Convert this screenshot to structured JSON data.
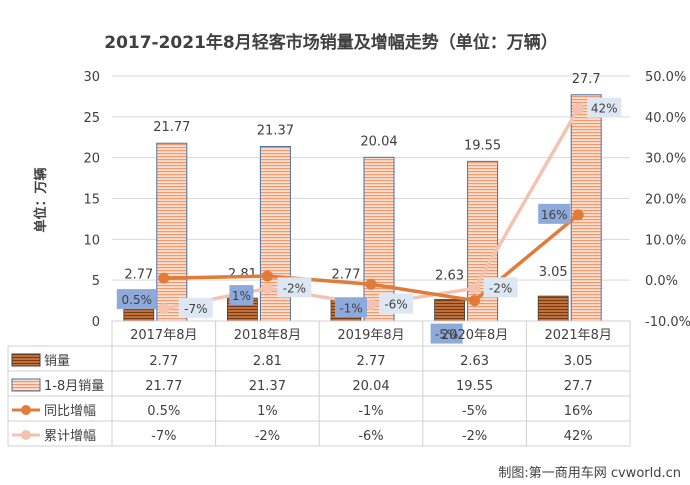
{
  "chart_data": {
    "type": "bar+line",
    "title": "2017-2021年8月轻客市场销量及增幅走势（单位：万辆）",
    "ylabel": "单位：万辆",
    "categories": [
      "2017年8月",
      "2018年8月",
      "2019年8月",
      "2020年8月",
      "2021年8月"
    ],
    "y_left": {
      "min": 0,
      "max": 30,
      "ticks": [
        "0",
        "5",
        "10",
        "15",
        "20",
        "25",
        "30"
      ]
    },
    "y_right": {
      "min": -10,
      "max": 50,
      "ticks": [
        "-10.0%",
        "0.0%",
        "10.0%",
        "20.0%",
        "30.0%",
        "40.0%",
        "50.0%"
      ]
    },
    "series": [
      {
        "name": "销量",
        "kind": "bar",
        "axis": "left",
        "color": "#c0703a",
        "values": [
          2.77,
          2.81,
          2.77,
          2.63,
          3.05
        ],
        "labels": [
          "2.77",
          "2.81",
          "2.77",
          "2.63",
          "3.05"
        ]
      },
      {
        "name": "1-8月销量",
        "kind": "bar",
        "axis": "left",
        "color": "#f4b08a",
        "values": [
          21.77,
          21.37,
          20.04,
          19.55,
          27.7
        ],
        "labels": [
          "21.77",
          "21.37",
          "20.04",
          "19.55",
          "27.7"
        ]
      },
      {
        "name": "同比增幅",
        "kind": "line",
        "axis": "right",
        "color": "#e07b39",
        "values": [
          0.5,
          1,
          -1,
          -5,
          16
        ],
        "labels": [
          "0.5%",
          "1%",
          "-1%",
          "-5%",
          "16%"
        ]
      },
      {
        "name": "累计增幅",
        "kind": "line",
        "axis": "right",
        "color": "#f4c2b0",
        "values": [
          -7,
          -2,
          -6,
          -2,
          42
        ],
        "labels": [
          "-7%",
          "-2%",
          "-6%",
          "-2%",
          "42%"
        ]
      }
    ],
    "table": {
      "rows": [
        [
          "2.77",
          "2.81",
          "2.77",
          "2.63",
          "3.05"
        ],
        [
          "21.77",
          "21.37",
          "20.04",
          "19.55",
          "27.7"
        ],
        [
          "0.5%",
          "1%",
          "-1%",
          "-5%",
          "16%"
        ],
        [
          "-7%",
          "-2%",
          "-6%",
          "-2%",
          "42%"
        ]
      ]
    },
    "grid": true
  },
  "footer": {
    "credit": "制图:第一商用车网 cvworld.cn"
  }
}
